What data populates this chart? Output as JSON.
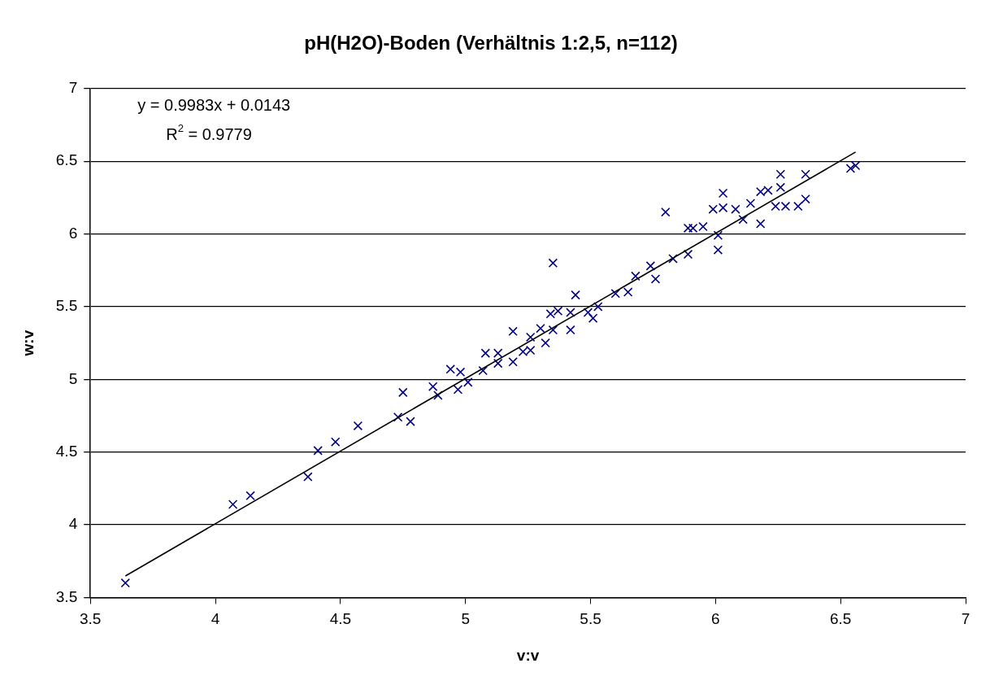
{
  "chart_data": {
    "type": "scatter",
    "title": "pH(H2O)-Boden (Verhältnis 1:2,5, n=112)",
    "xlabel": "v:v",
    "ylabel": "w:v",
    "annotations": [
      "y = 0.9983x + 0.0143",
      "R$^{2}$ = 0.9779"
    ],
    "xlim": [
      3.5,
      7
    ],
    "xticks": [
      3.5,
      4,
      4.5,
      5,
      5.5,
      6,
      6.5,
      7
    ],
    "ylim": [
      3.5,
      7
    ],
    "yticks": [
      3.5,
      4,
      4.5,
      5,
      5.5,
      6,
      6.5,
      7
    ],
    "grid": "y",
    "legend": false,
    "marker": "cross",
    "series": [
      {
        "color": "#000080",
        "x": [
          3.64,
          4.07,
          4.14,
          4.37,
          4.41,
          4.48,
          4.57,
          4.73,
          4.75,
          4.78,
          4.87,
          4.89,
          4.94,
          4.98,
          4.97,
          5.01,
          5.07,
          5.08,
          5.13,
          5.13,
          5.19,
          5.19,
          5.23,
          5.26,
          5.26,
          5.3,
          5.32,
          5.35,
          5.34,
          5.37,
          5.35,
          5.42,
          5.42,
          5.44,
          5.49,
          5.53,
          5.51,
          5.6,
          5.65,
          5.68,
          5.74,
          5.76,
          5.83,
          5.8,
          5.89,
          5.89,
          5.91,
          5.95,
          6.01,
          6.01,
          5.99,
          6.03,
          6.03,
          6.08,
          6.11,
          6.14,
          6.18,
          6.18,
          6.21,
          6.26,
          6.26,
          6.28,
          6.24,
          6.33,
          6.36,
          6.36,
          6.54,
          6.56
        ],
        "values": [
          3.6,
          4.14,
          4.2,
          4.33,
          4.51,
          4.57,
          4.68,
          4.74,
          4.91,
          4.71,
          4.95,
          4.89,
          5.07,
          5.05,
          4.93,
          4.98,
          5.06,
          5.18,
          5.18,
          5.11,
          5.33,
          5.12,
          5.19,
          5.29,
          5.2,
          5.35,
          5.25,
          5.8,
          5.45,
          5.47,
          5.34,
          5.46,
          5.34,
          5.58,
          5.46,
          5.5,
          5.42,
          5.59,
          5.6,
          5.71,
          5.78,
          5.69,
          5.83,
          6.15,
          5.86,
          6.04,
          6.04,
          6.05,
          5.89,
          5.99,
          6.17,
          6.18,
          6.28,
          6.17,
          6.1,
          6.21,
          6.07,
          6.29,
          6.3,
          6.32,
          6.41,
          6.19,
          6.19,
          6.19,
          6.24,
          6.41,
          6.45,
          6.47
        ]
      },
      {
        "type": "line",
        "color": "#000000",
        "marker": "none",
        "line_style": "solid",
        "x": [
          3.64,
          6.56
        ],
        "values": [
          3.648,
          6.563
        ]
      }
    ]
  }
}
